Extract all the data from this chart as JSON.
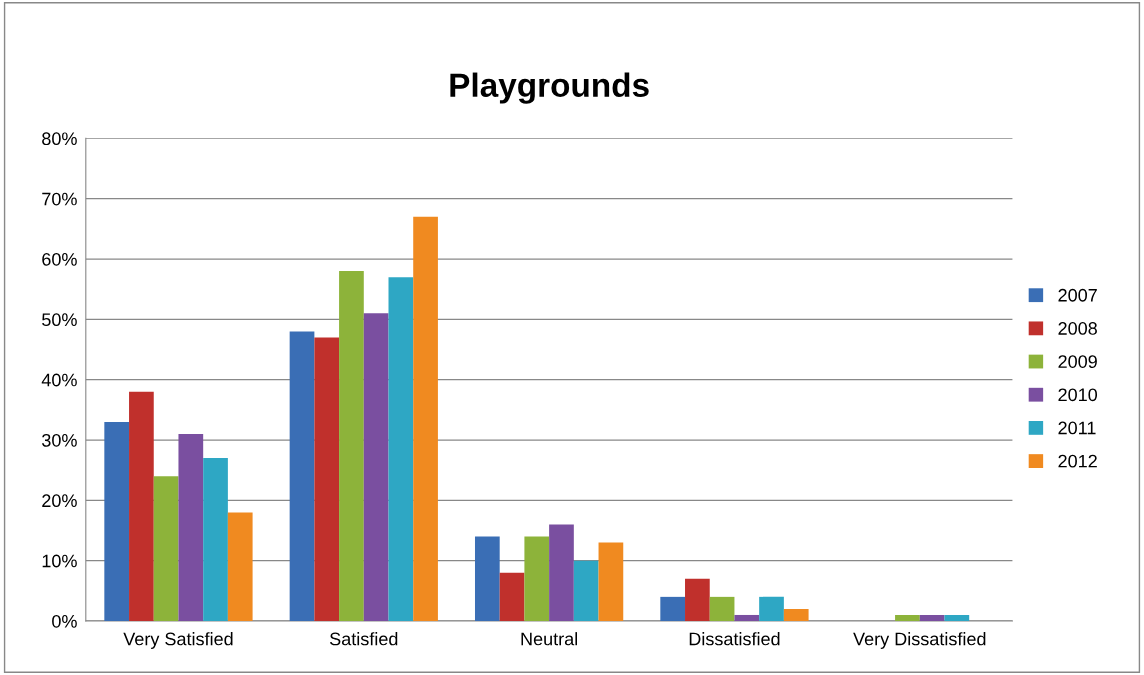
{
  "chart_data": {
    "type": "bar",
    "title": "Playgrounds",
    "categories": [
      "Very Satisfied",
      "Satisfied",
      "Neutral",
      "Dissatisfied",
      "Very Dissatisfied"
    ],
    "series": [
      {
        "name": "2007",
        "color": "#3a6eb5",
        "values": [
          33,
          48,
          14,
          4,
          0
        ]
      },
      {
        "name": "2008",
        "color": "#c0302c",
        "values": [
          38,
          47,
          8,
          7,
          0
        ]
      },
      {
        "name": "2009",
        "color": "#8db33a",
        "values": [
          24,
          58,
          14,
          4,
          1
        ]
      },
      {
        "name": "2010",
        "color": "#7a4fa0",
        "values": [
          31,
          51,
          16,
          1,
          1
        ]
      },
      {
        "name": "2011",
        "color": "#2ea7c4",
        "values": [
          27,
          57,
          10,
          4,
          1
        ]
      },
      {
        "name": "2012",
        "color": "#f08a20",
        "values": [
          18,
          67,
          13,
          2,
          0
        ]
      }
    ],
    "ylim": [
      0,
      80
    ],
    "yticks": [
      {
        "value": 0,
        "label": "0%"
      },
      {
        "value": 10,
        "label": "10%"
      },
      {
        "value": 20,
        "label": "20%"
      },
      {
        "value": 30,
        "label": "30%"
      },
      {
        "value": 40,
        "label": "40%"
      },
      {
        "value": 50,
        "label": "50%"
      },
      {
        "value": 60,
        "label": "60%"
      },
      {
        "value": 70,
        "label": "70%"
      },
      {
        "value": 80,
        "label": "80%"
      }
    ],
    "grid": "y",
    "legend": "right"
  }
}
